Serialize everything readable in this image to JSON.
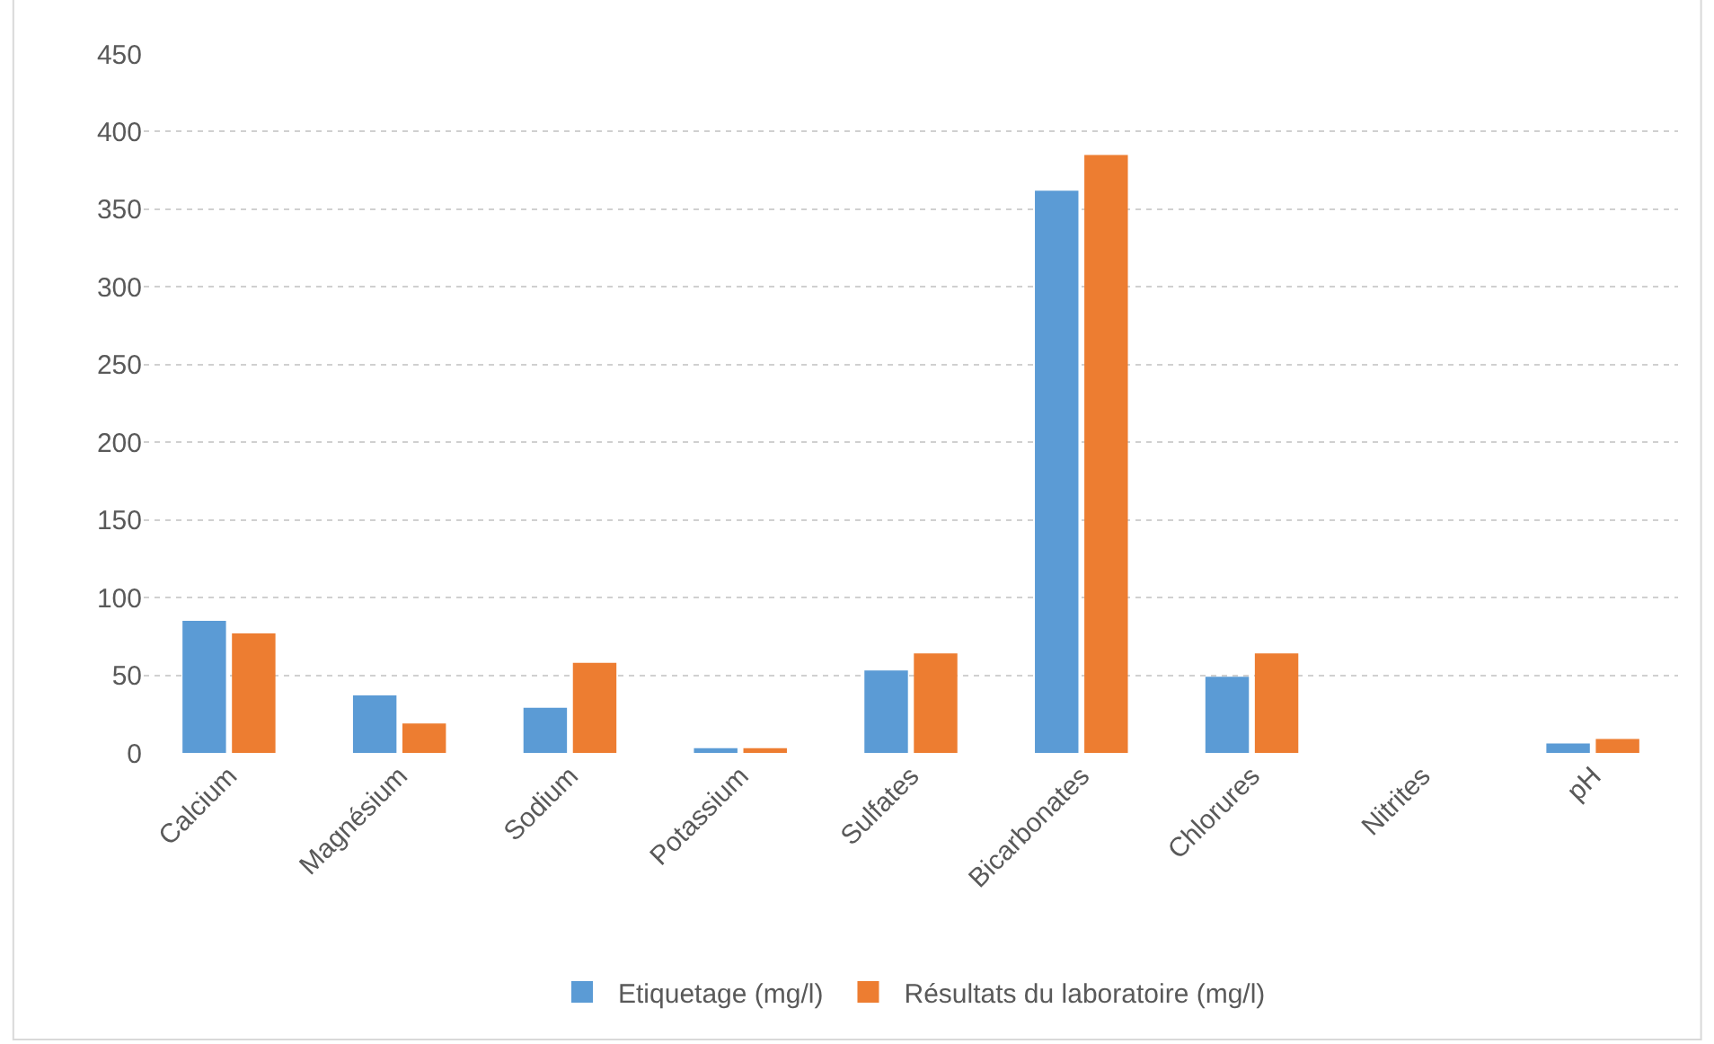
{
  "chart_data": {
    "type": "bar",
    "categories": [
      "Calcium",
      "Magnésium",
      "Sodium",
      "Potassium",
      "Sulfates",
      "Bicarbonates",
      "Chlorures",
      "Nitrites",
      "pH"
    ],
    "series": [
      {
        "name": "Etiquetage (mg/l)",
        "color": "#5b9bd5",
        "values": [
          85,
          37,
          29,
          3,
          53,
          362,
          49,
          0,
          6
        ]
      },
      {
        "name": "Résultats du laboratoire (mg/l)",
        "color": "#ed7d31",
        "values": [
          77,
          19,
          58,
          3,
          64,
          385,
          64,
          0,
          9
        ]
      }
    ],
    "ylim": [
      0,
      450
    ],
    "yticks": [
      0,
      50,
      100,
      150,
      200,
      250,
      300,
      350,
      400,
      450
    ],
    "grid": "y",
    "legend": "bottom"
  }
}
